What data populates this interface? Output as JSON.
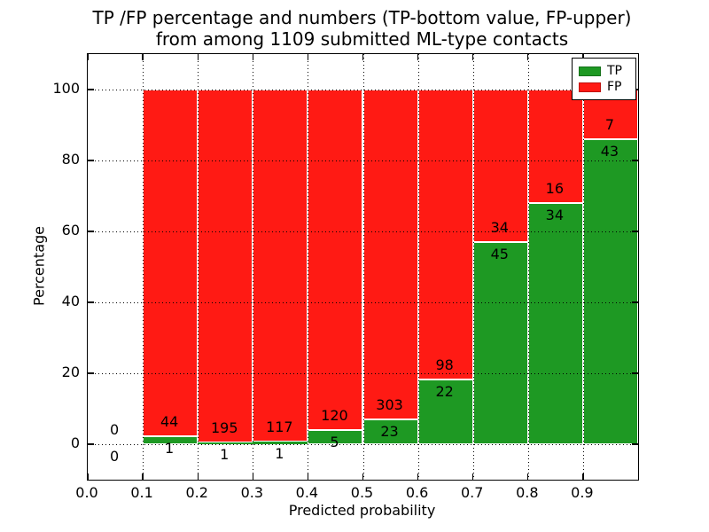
{
  "figure": {
    "title_line1": "TP /FP percentage and numbers (TP-bottom value, FP-upper)",
    "title_line2": "from among 1109 submitted ML-type contacts"
  },
  "axes": {
    "xlabel": "Predicted probability",
    "ylabel": "Percentage",
    "ytick_labels": [
      "0",
      "20",
      "40",
      "60",
      "80",
      "100"
    ],
    "xtick_labels": [
      "0.0",
      "0.1",
      "0.2",
      "0.3",
      "0.4",
      "0.5",
      "0.6",
      "0.7",
      "0.8",
      "0.9"
    ]
  },
  "legend": {
    "items": [
      {
        "label": "TP",
        "color": "#1e9923"
      },
      {
        "label": "FP",
        "color": "#ff1a14"
      }
    ]
  },
  "chart_data": {
    "type": "bar",
    "stacked": true,
    "title": "TP /FP percentage and numbers (TP-bottom value, FP-upper) from among 1109 submitted ML-type contacts",
    "xlabel": "Predicted probability",
    "ylabel": "Percentage",
    "xlim": [
      0.0,
      1.0
    ],
    "ylim": [
      -10,
      110
    ],
    "yticks": [
      0,
      20,
      40,
      60,
      80,
      100
    ],
    "xticks": [
      0.0,
      0.1,
      0.2,
      0.3,
      0.4,
      0.5,
      0.6,
      0.7,
      0.8,
      0.9
    ],
    "grid": true,
    "legend_position": "upper right",
    "total_submitted": 1109,
    "series": [
      {
        "name": "TP",
        "color": "#1e9923",
        "position": "bottom"
      },
      {
        "name": "FP",
        "color": "#ff1a14",
        "position": "top"
      }
    ],
    "bins": [
      {
        "range": [
          0.0,
          0.1
        ],
        "tp": 0,
        "fp": 0,
        "tp_pct": null,
        "fp_pct": null
      },
      {
        "range": [
          0.1,
          0.2
        ],
        "tp": 1,
        "fp": 44,
        "tp_pct": 2.22,
        "fp_pct": 97.78
      },
      {
        "range": [
          0.2,
          0.3
        ],
        "tp": 1,
        "fp": 195,
        "tp_pct": 0.51,
        "fp_pct": 99.49
      },
      {
        "range": [
          0.3,
          0.4
        ],
        "tp": 1,
        "fp": 117,
        "tp_pct": 0.85,
        "fp_pct": 99.15
      },
      {
        "range": [
          0.4,
          0.5
        ],
        "tp": 5,
        "fp": 120,
        "tp_pct": 4.0,
        "fp_pct": 96.0
      },
      {
        "range": [
          0.5,
          0.6
        ],
        "tp": 23,
        "fp": 303,
        "tp_pct": 7.06,
        "fp_pct": 92.94
      },
      {
        "range": [
          0.6,
          0.7
        ],
        "tp": 22,
        "fp": 98,
        "tp_pct": 18.33,
        "fp_pct": 81.67
      },
      {
        "range": [
          0.7,
          0.8
        ],
        "tp": 45,
        "fp": 34,
        "tp_pct": 56.96,
        "fp_pct": 43.04
      },
      {
        "range": [
          0.8,
          0.9
        ],
        "tp": 34,
        "fp": 16,
        "tp_pct": 68.0,
        "fp_pct": 32.0
      },
      {
        "range": [
          0.9,
          1.0
        ],
        "tp": 43,
        "fp": 7,
        "tp_pct": 86.0,
        "fp_pct": 14.0
      }
    ]
  }
}
